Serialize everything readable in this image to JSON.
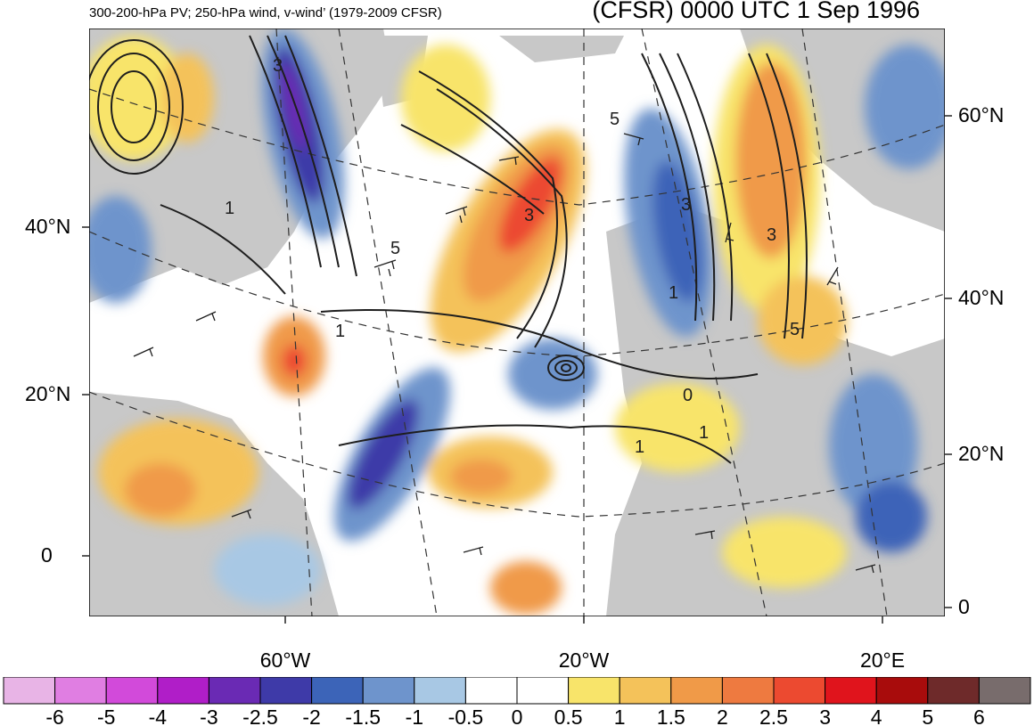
{
  "header": {
    "left_title": "300-200-hPa PV; 250-hPa wind, v-wind’ (1979-2009 CFSR)",
    "right_title": "(CFSR) 0000 UTC 1 Sep 1996"
  },
  "axes": {
    "left_lat_labels": [
      "40°N",
      "20°N",
      "0"
    ],
    "right_lat_labels": [
      "60°N",
      "40°N",
      "20°N",
      "0"
    ],
    "bottom_lon_labels": [
      "60°W",
      "20°W",
      "20°E"
    ]
  },
  "contour_labels": [
    "3",
    "1",
    "5",
    "1",
    "3",
    "5",
    "3",
    "1",
    "3",
    "5",
    "1",
    "1",
    "0"
  ],
  "colorbar": {
    "ticks": [
      "-6",
      "-5",
      "-4",
      "-3",
      "-2.5",
      "-2",
      "-1.5",
      "-1",
      "-0.5",
      "0",
      "0.5",
      "1",
      "1.5",
      "2",
      "2.5",
      "3",
      "4",
      "5",
      "6"
    ],
    "colors": [
      "#e8b4e6",
      "#e07ee2",
      "#d24ada",
      "#b01ec8",
      "#6a2ab4",
      "#3e3aa8",
      "#3c64b8",
      "#6e94cc",
      "#a8c8e4",
      "#ffffff",
      "#ffffff",
      "#f8e46a",
      "#f4c25a",
      "#f09a48",
      "#ee7a40",
      "#ec4a30",
      "#e0141c",
      "#a80c0c",
      "#6e2a2a",
      "#786c6c"
    ]
  },
  "chart_data": {
    "type": "heatmap",
    "title": "300-200-hPa PV; 250-hPa wind, v-wind’ (1979-2009 CFSR)",
    "subtitle": "(CFSR) 0000 UTC 1 Sep 1996",
    "colorbar_levels": [
      -6,
      -5,
      -4,
      -3,
      -2.5,
      -2,
      -1.5,
      -1,
      -0.5,
      0,
      0.5,
      1,
      1.5,
      2,
      2.5,
      3,
      4,
      5,
      6
    ],
    "contour_values": [
      0,
      1,
      3,
      5
    ]
  }
}
